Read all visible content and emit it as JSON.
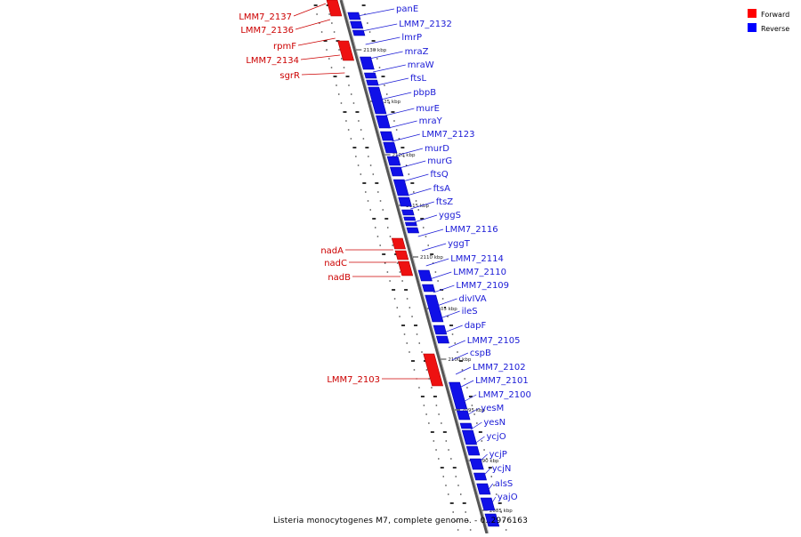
{
  "legend": [
    {
      "label": "Forward",
      "color": "#ff0000"
    },
    {
      "label": "Reverse",
      "color": "#0000ff"
    }
  ],
  "caption": "Listeria monocytogenes M7, complete genome. - 0..2976163",
  "colors": {
    "forward": "#ff0000",
    "reverse": "#0000ff",
    "backbone": "#555555",
    "text_forward": "#cc0000",
    "text_reverse": "#1a1ad6"
  },
  "ticks": [
    "2130 kbp",
    "2125 kbp",
    "2120 kbp",
    "2115 kbp",
    "2110 kbp",
    "2105 kbp",
    "2100 kbp",
    "2095 kbp",
    "2090 kbp",
    "2085 kbp"
  ],
  "reverse_genes": [
    "panE",
    "LMM7_2132",
    "lmrP",
    "mraZ",
    "mraW",
    "ftsL",
    "pbpB",
    "murE",
    "mraY",
    "LMM7_2123",
    "murD",
    "murG",
    "ftsQ",
    "ftsA",
    "ftsZ",
    "yggS",
    "LMM7_2116",
    "yggT",
    "LMM7_2114",
    "LMM7_2110",
    "LMM7_2109",
    "divIVA",
    "ileS",
    "dapF",
    "LMM7_2105",
    "cspB",
    "LMM7_2102",
    "LMM7_2101",
    "LMM7_2100",
    "yesM",
    "yesN",
    "ycjO",
    "ycjP",
    "ycjN",
    "alsS",
    "yajO"
  ],
  "forward_genes": [
    "LMM7_2137",
    "LMM7_2136",
    "rpmF",
    "LMM7_2134",
    "sgrR",
    "nadA",
    "nadC",
    "nadB",
    "LMM7_2103"
  ]
}
